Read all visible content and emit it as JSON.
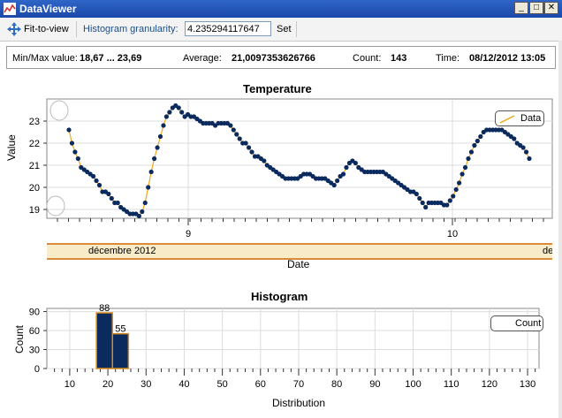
{
  "window": {
    "title": "DataViewer",
    "icon": "chart-app-icon"
  },
  "toolbar": {
    "fit_label": "Fit-to-view",
    "fit_icon": "move-arrows-icon",
    "granularity_label": "Histogram granularity:",
    "granularity_value": "4.235294117647",
    "set_label": "Set"
  },
  "stats": {
    "minmax_label": "Min/Max value:",
    "minmax_value": "18,67 ... 23,69",
    "average_label": "Average:",
    "average_value": "21,0097353626766",
    "count_label": "Count:",
    "count_value": "143",
    "time_label": "Time:",
    "time_value": "08/12/2012 13:05"
  },
  "temperature_chart": {
    "title": "Temperature",
    "ylabel": "Value",
    "xlabel": "Date",
    "legend": "Data",
    "date_month": "décembre 2012",
    "date_month_cut": "de"
  },
  "histogram_chart": {
    "title": "Histogram",
    "ylabel": "Count",
    "xlabel": "Distribution",
    "legend": "Count"
  },
  "colors": {
    "series": "#0b2a5e",
    "line": "#f2a51a",
    "hist_border": "#d98b1a",
    "grid": "#dcdcdc"
  },
  "chart_data": [
    {
      "type": "line",
      "title": "Temperature",
      "xlabel": "Date",
      "ylabel": "Value",
      "x_tick_labels": [
        "9",
        "10"
      ],
      "y_ticks": [
        19,
        20,
        21,
        22,
        23
      ],
      "ylim": [
        18.6,
        24
      ],
      "legend": "top-right",
      "series": [
        {
          "name": "Data",
          "values": [
            22.6,
            22.0,
            21.6,
            21.3,
            20.9,
            20.8,
            20.7,
            20.6,
            20.5,
            20.3,
            20.1,
            19.8,
            19.8,
            19.7,
            19.5,
            19.3,
            19.3,
            19.1,
            19.0,
            18.9,
            18.8,
            18.8,
            18.8,
            18.7,
            18.9,
            19.3,
            20.0,
            20.7,
            21.3,
            21.8,
            22.3,
            22.8,
            23.2,
            23.4,
            23.6,
            23.7,
            23.6,
            23.4,
            23.2,
            23.3,
            23.2,
            23.2,
            23.1,
            23.0,
            22.9,
            22.9,
            22.9,
            22.9,
            22.8,
            22.9,
            22.9,
            22.9,
            22.9,
            22.8,
            22.6,
            22.4,
            22.2,
            22.0,
            22.0,
            21.8,
            21.6,
            21.4,
            21.4,
            21.3,
            21.2,
            21.0,
            20.9,
            20.8,
            20.7,
            20.6,
            20.5,
            20.4,
            20.4,
            20.4,
            20.4,
            20.4,
            20.5,
            20.6,
            20.6,
            20.6,
            20.5,
            20.4,
            20.4,
            20.4,
            20.4,
            20.3,
            20.2,
            20.1,
            20.3,
            20.5,
            20.6,
            20.9,
            21.1,
            21.2,
            21.1,
            20.9,
            20.8,
            20.7,
            20.7,
            20.7,
            20.7,
            20.7,
            20.7,
            20.7,
            20.6,
            20.5,
            20.4,
            20.3,
            20.2,
            20.1,
            20.0,
            19.9,
            19.8,
            19.8,
            19.7,
            19.5,
            19.3,
            19.1,
            19.3,
            19.3,
            19.3,
            19.3,
            19.3,
            19.2,
            19.2,
            19.4,
            19.6,
            19.9,
            20.2,
            20.6,
            20.9,
            21.3,
            21.6,
            21.9,
            22.1,
            22.3,
            22.5,
            22.6,
            22.6,
            22.6,
            22.6,
            22.6,
            22.6,
            22.5,
            22.4,
            22.3,
            22.2,
            22.0,
            21.9,
            21.8,
            21.6,
            21.3
          ]
        }
      ]
    },
    {
      "type": "bar",
      "title": "Histogram",
      "xlabel": "Distribution",
      "ylabel": "Count",
      "x_ticks": [
        10,
        20,
        30,
        40,
        50,
        60,
        70,
        80,
        90,
        100,
        110,
        120,
        130
      ],
      "xlim": [
        4,
        133
      ],
      "y_ticks": [
        0,
        30,
        60,
        90
      ],
      "ylim": [
        0,
        95
      ],
      "legend": "top-right",
      "bars": [
        {
          "x_start": 17,
          "x_end": 21.2,
          "value": 88
        },
        {
          "x_start": 21.2,
          "x_end": 25.4,
          "value": 55
        }
      ],
      "data_labels": [
        "88",
        "55"
      ]
    }
  ]
}
